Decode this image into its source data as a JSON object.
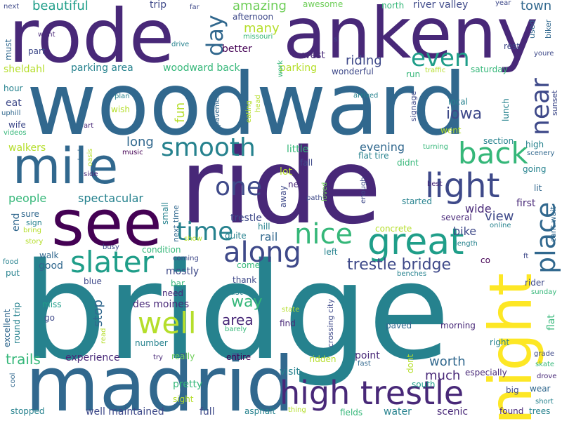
{
  "palette": [
    "#440154",
    "#482878",
    "#3e4989",
    "#31688e",
    "#26828e",
    "#1f9e89",
    "#35b779",
    "#6ece58",
    "#b5de2b",
    "#fde725"
  ],
  "words": [
    {
      "text": "bridge",
      "color": "#26828e",
      "vertical": false
    },
    {
      "text": "woodward",
      "color": "#31688e",
      "vertical": false
    },
    {
      "text": "ride",
      "color": "#482878",
      "vertical": false
    },
    {
      "text": "rode",
      "color": "#482878",
      "vertical": false
    },
    {
      "text": "ankeny",
      "color": "#482878",
      "vertical": false
    },
    {
      "text": "madrid",
      "color": "#31688e",
      "vertical": false
    },
    {
      "text": "see",
      "color": "#440154",
      "vertical": false
    },
    {
      "text": "mile",
      "color": "#31688e",
      "vertical": false
    },
    {
      "text": "night",
      "color": "#fde725",
      "vertical": true
    },
    {
      "text": "high trestle",
      "color": "#482878",
      "vertical": false
    },
    {
      "text": "great",
      "color": "#1f9e89",
      "vertical": false
    },
    {
      "text": "light",
      "color": "#3e4989",
      "vertical": false
    },
    {
      "text": "back",
      "color": "#35b779",
      "vertical": false
    },
    {
      "text": "along",
      "color": "#3e4989",
      "vertical": false
    },
    {
      "text": "slater",
      "color": "#1f9e89",
      "vertical": false
    },
    {
      "text": "well",
      "color": "#b5de2b",
      "vertical": false
    },
    {
      "text": "nice",
      "color": "#35b779",
      "vertical": false
    },
    {
      "text": "place",
      "color": "#31688e",
      "vertical": true
    },
    {
      "text": "near",
      "color": "#3e4989",
      "vertical": true
    },
    {
      "text": "smooth",
      "color": "#26828e",
      "vertical": false
    },
    {
      "text": "time",
      "color": "#26828e",
      "vertical": false
    },
    {
      "text": "one",
      "color": "#3e4989",
      "vertical": false
    },
    {
      "text": "even",
      "color": "#1f9e89",
      "vertical": false
    },
    {
      "text": "day",
      "color": "#31688e",
      "vertical": true
    },
    {
      "text": "trestle bridge",
      "color": "#3e4989",
      "vertical": false
    },
    {
      "text": "amazing",
      "color": "#6ece58",
      "vertical": false
    },
    {
      "text": "beautiful",
      "color": "#1f9e89",
      "vertical": false
    },
    {
      "text": "many",
      "color": "#b5de2b",
      "vertical": false
    },
    {
      "text": "area",
      "color": "#482878",
      "vertical": false
    },
    {
      "text": "way",
      "color": "#35b779",
      "vertical": false
    },
    {
      "text": "iowa",
      "color": "#3e4989",
      "vertical": false
    },
    {
      "text": "trails",
      "color": "#35b779",
      "vertical": false
    },
    {
      "text": "worth",
      "color": "#31688e",
      "vertical": false
    },
    {
      "text": "much",
      "color": "#482878",
      "vertical": false
    },
    {
      "text": "people",
      "color": "#35b779",
      "vertical": false
    },
    {
      "text": "riding",
      "color": "#3e4989",
      "vertical": false
    },
    {
      "text": "evening",
      "color": "#31688e",
      "vertical": false
    },
    {
      "text": "long",
      "color": "#31688e",
      "vertical": false
    },
    {
      "text": "spectacular",
      "color": "#26828e",
      "vertical": false
    },
    {
      "text": "town",
      "color": "#31688e",
      "vertical": false
    },
    {
      "text": "des moines",
      "color": "#482878",
      "vertical": false
    },
    {
      "text": "pretty",
      "color": "#35b779",
      "vertical": false
    },
    {
      "text": "experience",
      "color": "#482878",
      "vertical": false
    },
    {
      "text": "well maintained",
      "color": "#3e4989",
      "vertical": false
    },
    {
      "text": "full",
      "color": "#3e4989",
      "vertical": false
    },
    {
      "text": "woodward back",
      "color": "#35b779",
      "vertical": false
    },
    {
      "text": "parking area",
      "color": "#26828e",
      "vertical": false
    },
    {
      "text": "sheldahl",
      "color": "#b5de2b",
      "vertical": false
    },
    {
      "text": "rail",
      "color": "#31688e",
      "vertical": false
    },
    {
      "text": "trestle",
      "color": "#3e4989",
      "vertical": false
    },
    {
      "text": "fun",
      "color": "#b5de2b",
      "vertical": true
    },
    {
      "text": "stop",
      "color": "#31688e",
      "vertical": true
    },
    {
      "text": "good",
      "color": "#31688e",
      "vertical": false
    },
    {
      "text": "mostly",
      "color": "#3e4989",
      "vertical": false
    },
    {
      "text": "view",
      "color": "#3e4989",
      "vertical": false
    },
    {
      "text": "wide",
      "color": "#482878",
      "vertical": false
    },
    {
      "text": "bike",
      "color": "#3e4989",
      "vertical": false
    },
    {
      "text": "first",
      "color": "#482878",
      "vertical": false
    },
    {
      "text": "scenic",
      "color": "#482878",
      "vertical": false
    },
    {
      "text": "water",
      "color": "#26828e",
      "vertical": false
    },
    {
      "text": "point",
      "color": "#482878",
      "vertical": false
    },
    {
      "text": "visit",
      "color": "#26828e",
      "vertical": false
    },
    {
      "text": "little",
      "color": "#35b779",
      "vertical": false
    },
    {
      "text": "lot",
      "color": "#b5de2b",
      "vertical": false
    },
    {
      "text": "walkers",
      "color": "#b5de2b",
      "vertical": false
    },
    {
      "text": "end",
      "color": "#31688e",
      "vertical": true
    },
    {
      "text": "west",
      "color": "#482878",
      "vertical": false
    },
    {
      "text": "parking",
      "color": "#b5de2b",
      "vertical": false
    },
    {
      "text": "better",
      "color": "#440154",
      "vertical": false
    },
    {
      "text": "trip",
      "color": "#3e4989",
      "vertical": false
    },
    {
      "text": "afternoon",
      "color": "#3e4989",
      "vertical": false
    },
    {
      "text": "awesome",
      "color": "#6ece58",
      "vertical": false
    },
    {
      "text": "north",
      "color": "#35b779",
      "vertical": false
    },
    {
      "text": "river valley",
      "color": "#3e4989",
      "vertical": false
    },
    {
      "text": "year",
      "color": "#3e4989",
      "vertical": false
    },
    {
      "text": "rest",
      "color": "#3e4989",
      "vertical": false
    },
    {
      "text": "wonderful",
      "color": "#3e4989",
      "vertical": false
    },
    {
      "text": "run",
      "color": "#35b779",
      "vertical": false
    },
    {
      "text": "saturday",
      "color": "#35b779",
      "vertical": false
    },
    {
      "text": "went",
      "color": "#b5de2b",
      "vertical": false
    },
    {
      "text": "section",
      "color": "#26828e",
      "vertical": false
    },
    {
      "text": "high",
      "color": "#26828e",
      "vertical": false
    },
    {
      "text": "going",
      "color": "#26828e",
      "vertical": false
    },
    {
      "text": "lit",
      "color": "#31688e",
      "vertical": false
    },
    {
      "text": "flat tire",
      "color": "#26828e",
      "vertical": false
    },
    {
      "text": "didnt",
      "color": "#35b779",
      "vertical": false
    },
    {
      "text": "new",
      "color": "#482878",
      "vertical": false
    },
    {
      "text": "started",
      "color": "#26828e",
      "vertical": false
    },
    {
      "text": "several",
      "color": "#482878",
      "vertical": false
    },
    {
      "text": "quite",
      "color": "#26828e",
      "vertical": false
    },
    {
      "text": "hill",
      "color": "#26828e",
      "vertical": false
    },
    {
      "text": "come",
      "color": "#35b779",
      "vertical": false
    },
    {
      "text": "thank",
      "color": "#3e4989",
      "vertical": false
    },
    {
      "text": "east",
      "color": "#26828e",
      "vertical": false
    },
    {
      "text": "need",
      "color": "#482878",
      "vertical": false
    },
    {
      "text": "bar",
      "color": "#35b779",
      "vertical": false
    },
    {
      "text": "blue",
      "color": "#3e4989",
      "vertical": false
    },
    {
      "text": "walk",
      "color": "#31688e",
      "vertical": false
    },
    {
      "text": "put",
      "color": "#26828e",
      "vertical": false
    },
    {
      "text": "miss",
      "color": "#1f9e89",
      "vertical": false
    },
    {
      "text": "go",
      "color": "#3e4989",
      "vertical": false
    },
    {
      "text": "number",
      "color": "#26828e",
      "vertical": false
    },
    {
      "text": "really",
      "color": "#6ece58",
      "vertical": false
    },
    {
      "text": "entire",
      "color": "#440154",
      "vertical": false
    },
    {
      "text": "sight",
      "color": "#b5de2b",
      "vertical": false
    },
    {
      "text": "find",
      "color": "#482878",
      "vertical": false
    },
    {
      "text": "paved",
      "color": "#31688e",
      "vertical": false
    },
    {
      "text": "morning",
      "color": "#482878",
      "vertical": false
    },
    {
      "text": "right",
      "color": "#26828e",
      "vertical": false
    },
    {
      "text": "especially",
      "color": "#482878",
      "vertical": false
    },
    {
      "text": "big",
      "color": "#3e4989",
      "vertical": false
    },
    {
      "text": "wear",
      "color": "#31688e",
      "vertical": false
    },
    {
      "text": "found",
      "color": "#482878",
      "vertical": false
    },
    {
      "text": "trees",
      "color": "#26828e",
      "vertical": false
    },
    {
      "text": "stopped",
      "color": "#26828e",
      "vertical": false
    },
    {
      "text": "asphalt",
      "color": "#26828e",
      "vertical": false
    },
    {
      "text": "fields",
      "color": "#35b779",
      "vertical": false
    },
    {
      "text": "rider",
      "color": "#3e4989",
      "vertical": false
    },
    {
      "text": "sunday",
      "color": "#35b779",
      "vertical": false
    },
    {
      "text": "flat",
      "color": "#35b779",
      "vertical": true
    },
    {
      "text": "co",
      "color": "#440154",
      "vertical": false
    },
    {
      "text": "condition",
      "color": "#35b779",
      "vertical": false
    },
    {
      "text": "small",
      "color": "#26828e",
      "vertical": true
    },
    {
      "text": "next time",
      "color": "#31688e",
      "vertical": true
    },
    {
      "text": "sure",
      "color": "#31688e",
      "vertical": false
    },
    {
      "text": "sign",
      "color": "#26828e",
      "vertical": false
    },
    {
      "text": "bring",
      "color": "#b5de2b",
      "vertical": false
    },
    {
      "text": "story",
      "color": "#b5de2b",
      "vertical": false
    },
    {
      "text": "hour",
      "color": "#26828e",
      "vertical": false
    },
    {
      "text": "eat",
      "color": "#3e4989",
      "vertical": false
    },
    {
      "text": "uphill",
      "color": "#31688e",
      "vertical": false
    },
    {
      "text": "wife",
      "color": "#3e4989",
      "vertical": false
    },
    {
      "text": "videos",
      "color": "#35b779",
      "vertical": false
    },
    {
      "text": "must",
      "color": "#31688e",
      "vertical": true
    },
    {
      "text": "part",
      "color": "#3e4989",
      "vertical": false
    },
    {
      "text": "want",
      "color": "#482878",
      "vertical": false
    },
    {
      "text": "next",
      "color": "#3e4989",
      "vertical": false
    },
    {
      "text": "far",
      "color": "#3e4989",
      "vertical": false
    },
    {
      "text": "missouri",
      "color": "#35b779",
      "vertical": false
    },
    {
      "text": "drive",
      "color": "#26828e",
      "vertical": false
    },
    {
      "text": "used",
      "color": "#31688e",
      "vertical": true
    },
    {
      "text": "biker",
      "color": "#31688e",
      "vertical": true
    },
    {
      "text": "youre",
      "color": "#3e4989",
      "vertical": false
    },
    {
      "text": "traffic",
      "color": "#b5de2b",
      "vertical": false
    },
    {
      "text": "arrived",
      "color": "#26828e",
      "vertical": false
    },
    {
      "text": "plan",
      "color": "#26828e",
      "vertical": false
    },
    {
      "text": "wish",
      "color": "#b5de2b",
      "vertical": false
    },
    {
      "text": "art",
      "color": "#482878",
      "vertical": false
    },
    {
      "text": "music",
      "color": "#440154",
      "vertical": false
    },
    {
      "text": "oasis",
      "color": "#b5de2b",
      "vertical": true
    },
    {
      "text": "dark",
      "color": "#31688e",
      "vertical": true
    },
    {
      "text": "side",
      "color": "#482878",
      "vertical": false
    },
    {
      "text": "signage",
      "color": "#3e4989",
      "vertical": true
    },
    {
      "text": "local",
      "color": "#26828e",
      "vertical": false
    },
    {
      "text": "lunch",
      "color": "#26828e",
      "vertical": true
    },
    {
      "text": "sunset",
      "color": "#3e4989",
      "vertical": true
    },
    {
      "text": "turning",
      "color": "#35b779",
      "vertical": false
    },
    {
      "text": "scenery",
      "color": "#31688e",
      "vertical": false
    },
    {
      "text": "best",
      "color": "#482878",
      "vertical": false
    },
    {
      "text": "enough",
      "color": "#3e4989",
      "vertical": true
    },
    {
      "text": "loved",
      "color": "#6ece58",
      "vertical": true
    },
    {
      "text": "path",
      "color": "#3e4989",
      "vertical": false
    },
    {
      "text": "away",
      "color": "#3e4989",
      "vertical": true
    },
    {
      "text": "fall",
      "color": "#3e4989",
      "vertical": false
    },
    {
      "text": "pavement",
      "color": "#31688e",
      "vertical": true
    },
    {
      "text": "eating",
      "color": "#b5de2b",
      "vertical": true
    },
    {
      "text": "head",
      "color": "#b5de2b",
      "vertical": true
    },
    {
      "text": "work",
      "color": "#35b779",
      "vertical": true
    },
    {
      "text": "s",
      "color": "#3e4989",
      "vertical": false
    },
    {
      "text": "t",
      "color": "#31688e",
      "vertical": false
    },
    {
      "text": "concrete",
      "color": "#b5de2b",
      "vertical": false
    },
    {
      "text": "left",
      "color": "#26828e",
      "vertical": false
    },
    {
      "text": "busy",
      "color": "#3e4989",
      "vertical": false
    },
    {
      "text": "show",
      "color": "#b5de2b",
      "vertical": false
    },
    {
      "text": "coming",
      "color": "#3e4989",
      "vertical": false
    },
    {
      "text": "length",
      "color": "#26828e",
      "vertical": false
    },
    {
      "text": "online",
      "color": "#26828e",
      "vertical": false
    },
    {
      "text": "cant wait",
      "color": "#31688e",
      "vertical": true
    },
    {
      "text": "ft",
      "color": "#3e4989",
      "vertical": false
    },
    {
      "text": "benches",
      "color": "#26828e",
      "vertical": false
    },
    {
      "text": "crossing city",
      "color": "#3e4989",
      "vertical": true
    },
    {
      "text": "state",
      "color": "#b5de2b",
      "vertical": false
    },
    {
      "text": "barely",
      "color": "#35b779",
      "vertical": false
    },
    {
      "text": "read",
      "color": "#b5de2b",
      "vertical": true
    },
    {
      "text": "excellent",
      "color": "#31688e",
      "vertical": true
    },
    {
      "text": "round trip",
      "color": "#26828e",
      "vertical": true
    },
    {
      "text": "food",
      "color": "#26828e",
      "vertical": false
    },
    {
      "text": "try",
      "color": "#482878",
      "vertical": false
    },
    {
      "text": "ridden",
      "color": "#b5de2b",
      "vertical": false
    },
    {
      "text": "fast",
      "color": "#31688e",
      "vertical": false
    },
    {
      "text": "hope",
      "color": "#26828e",
      "vertical": false
    },
    {
      "text": "south",
      "color": "#1f9e89",
      "vertical": false
    },
    {
      "text": "thing",
      "color": "#b5de2b",
      "vertical": false
    },
    {
      "text": "dont",
      "color": "#b5de2b",
      "vertical": true
    },
    {
      "text": "cool",
      "color": "#31688e",
      "vertical": true
    },
    {
      "text": "grade",
      "color": "#3e4989",
      "vertical": false
    },
    {
      "text": "skate",
      "color": "#35b779",
      "vertical": false
    },
    {
      "text": "drove",
      "color": "#482878",
      "vertical": false
    },
    {
      "text": "short",
      "color": "#26828e",
      "vertical": false
    }
  ]
}
